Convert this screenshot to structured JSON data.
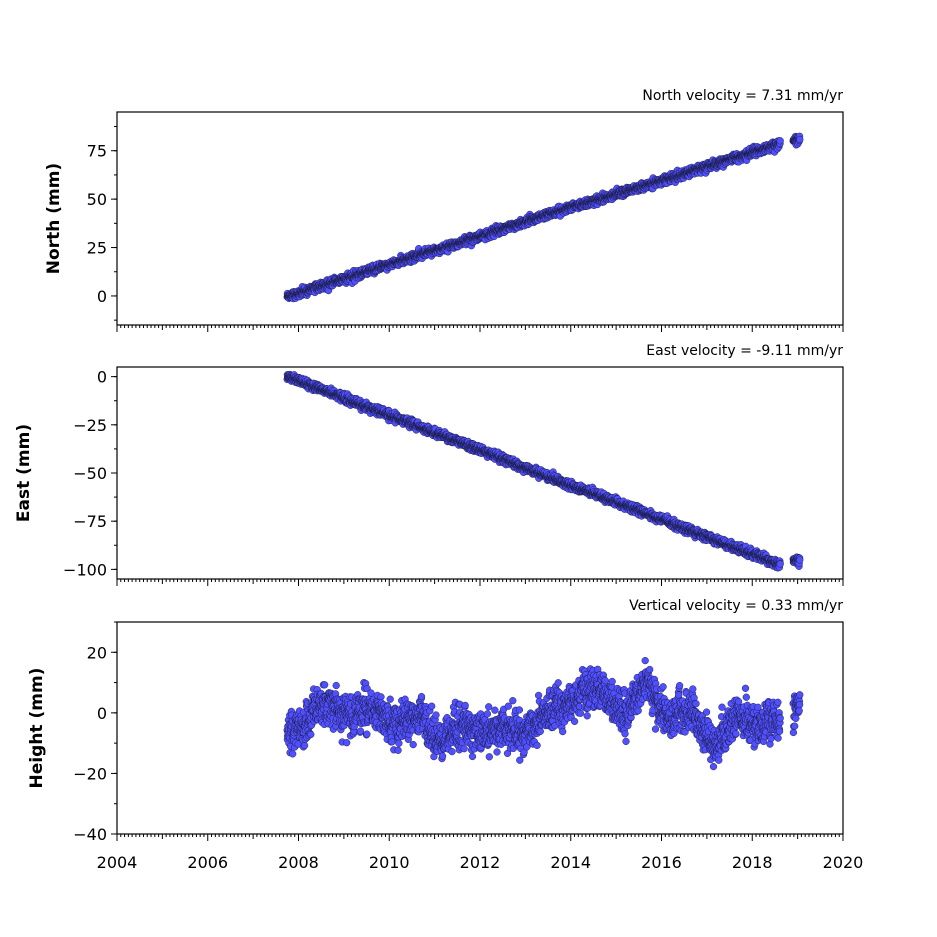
{
  "chart_data": [
    {
      "type": "scatter",
      "title": "North velocity = 7.31 mm/yr",
      "ylabel": "North (mm)",
      "xlabel": "",
      "xlim": [
        2004,
        2020
      ],
      "ylim": [
        -15,
        95
      ],
      "yticks": [
        0,
        25,
        50,
        75
      ],
      "ytick_labels": [
        "0",
        "25",
        "50",
        "75"
      ],
      "xticks": [
        2004,
        2006,
        2008,
        2010,
        2012,
        2014,
        2016,
        2018,
        2020
      ],
      "show_xtick_labels": false,
      "grid": false,
      "color": "#5050ff",
      "x_range": [
        2007.75,
        2019.05
      ],
      "velocity_mm_per_yr": 7.31,
      "series_points": [
        [
          2007.8,
          0
        ],
        [
          2008.5,
          5
        ],
        [
          2009.5,
          12.5
        ],
        [
          2010.5,
          20
        ],
        [
          2011.5,
          27
        ],
        [
          2012.5,
          34.5
        ],
        [
          2013.5,
          42
        ],
        [
          2014.5,
          49
        ],
        [
          2015.5,
          56
        ],
        [
          2016.5,
          63
        ],
        [
          2017.5,
          70.5
        ],
        [
          2018.6,
          78.5
        ],
        [
          2019.0,
          81
        ]
      ]
    },
    {
      "type": "scatter",
      "title": "East velocity = -9.11 mm/yr",
      "ylabel": "East (mm)",
      "xlabel": "",
      "xlim": [
        2004,
        2020
      ],
      "ylim": [
        -105,
        5
      ],
      "yticks": [
        0,
        -25,
        -50,
        -75,
        -100
      ],
      "ytick_labels": [
        "0",
        "−25",
        "−50",
        "−75",
        "−100"
      ],
      "xticks": [
        2004,
        2006,
        2008,
        2010,
        2012,
        2014,
        2016,
        2018,
        2020
      ],
      "show_xtick_labels": false,
      "grid": false,
      "color": "#5050ff",
      "x_range": [
        2007.75,
        2019.05
      ],
      "velocity_mm_per_yr": -9.11,
      "series_points": [
        [
          2007.8,
          0
        ],
        [
          2008.5,
          -6.5
        ],
        [
          2009.5,
          -15.5
        ],
        [
          2010.5,
          -24.5
        ],
        [
          2011.5,
          -33.5
        ],
        [
          2012.5,
          -42.5
        ],
        [
          2013.5,
          -52
        ],
        [
          2014.5,
          -60.5
        ],
        [
          2015.5,
          -69.5
        ],
        [
          2016.5,
          -78.5
        ],
        [
          2017.5,
          -87.5
        ],
        [
          2018.6,
          -97.5
        ],
        [
          2019.0,
          -95.5
        ]
      ]
    },
    {
      "type": "scatter",
      "title": "Vertical velocity = 0.33 mm/yr",
      "ylabel": "Height (mm)",
      "xlabel": "",
      "xlim": [
        2004,
        2020
      ],
      "ylim": [
        -40,
        30
      ],
      "yticks": [
        20,
        0,
        -20,
        -40
      ],
      "ytick_labels": [
        "20",
        "0",
        "−20",
        "−40"
      ],
      "xticks": [
        2004,
        2006,
        2008,
        2010,
        2012,
        2014,
        2016,
        2018,
        2020
      ],
      "xtick_labels": [
        "2004",
        "2006",
        "2008",
        "2010",
        "2012",
        "2014",
        "2016",
        "2018",
        "2020"
      ],
      "show_xtick_labels": true,
      "grid": false,
      "color": "#5050ff",
      "x_range": [
        2007.75,
        2019.05
      ],
      "velocity_mm_per_yr": 0.33,
      "series_points": [
        [
          2007.8,
          -3
        ],
        [
          2008.2,
          -6
        ],
        [
          2008.7,
          8
        ],
        [
          2009.2,
          -5
        ],
        [
          2009.7,
          5
        ],
        [
          2010.2,
          -8
        ],
        [
          2010.7,
          3
        ],
        [
          2011.2,
          -14
        ],
        [
          2011.7,
          0
        ],
        [
          2012.2,
          -10
        ],
        [
          2012.7,
          -2
        ],
        [
          2013.2,
          -8
        ],
        [
          2013.7,
          6
        ],
        [
          2014.2,
          2
        ],
        [
          2014.7,
          12
        ],
        [
          2015.2,
          -5
        ],
        [
          2015.7,
          14
        ],
        [
          2016.2,
          -6
        ],
        [
          2016.7,
          5
        ],
        [
          2017.2,
          -16
        ],
        [
          2017.7,
          4
        ],
        [
          2018.2,
          -8
        ],
        [
          2018.5,
          -2
        ],
        [
          2019.0,
          2
        ]
      ]
    }
  ]
}
